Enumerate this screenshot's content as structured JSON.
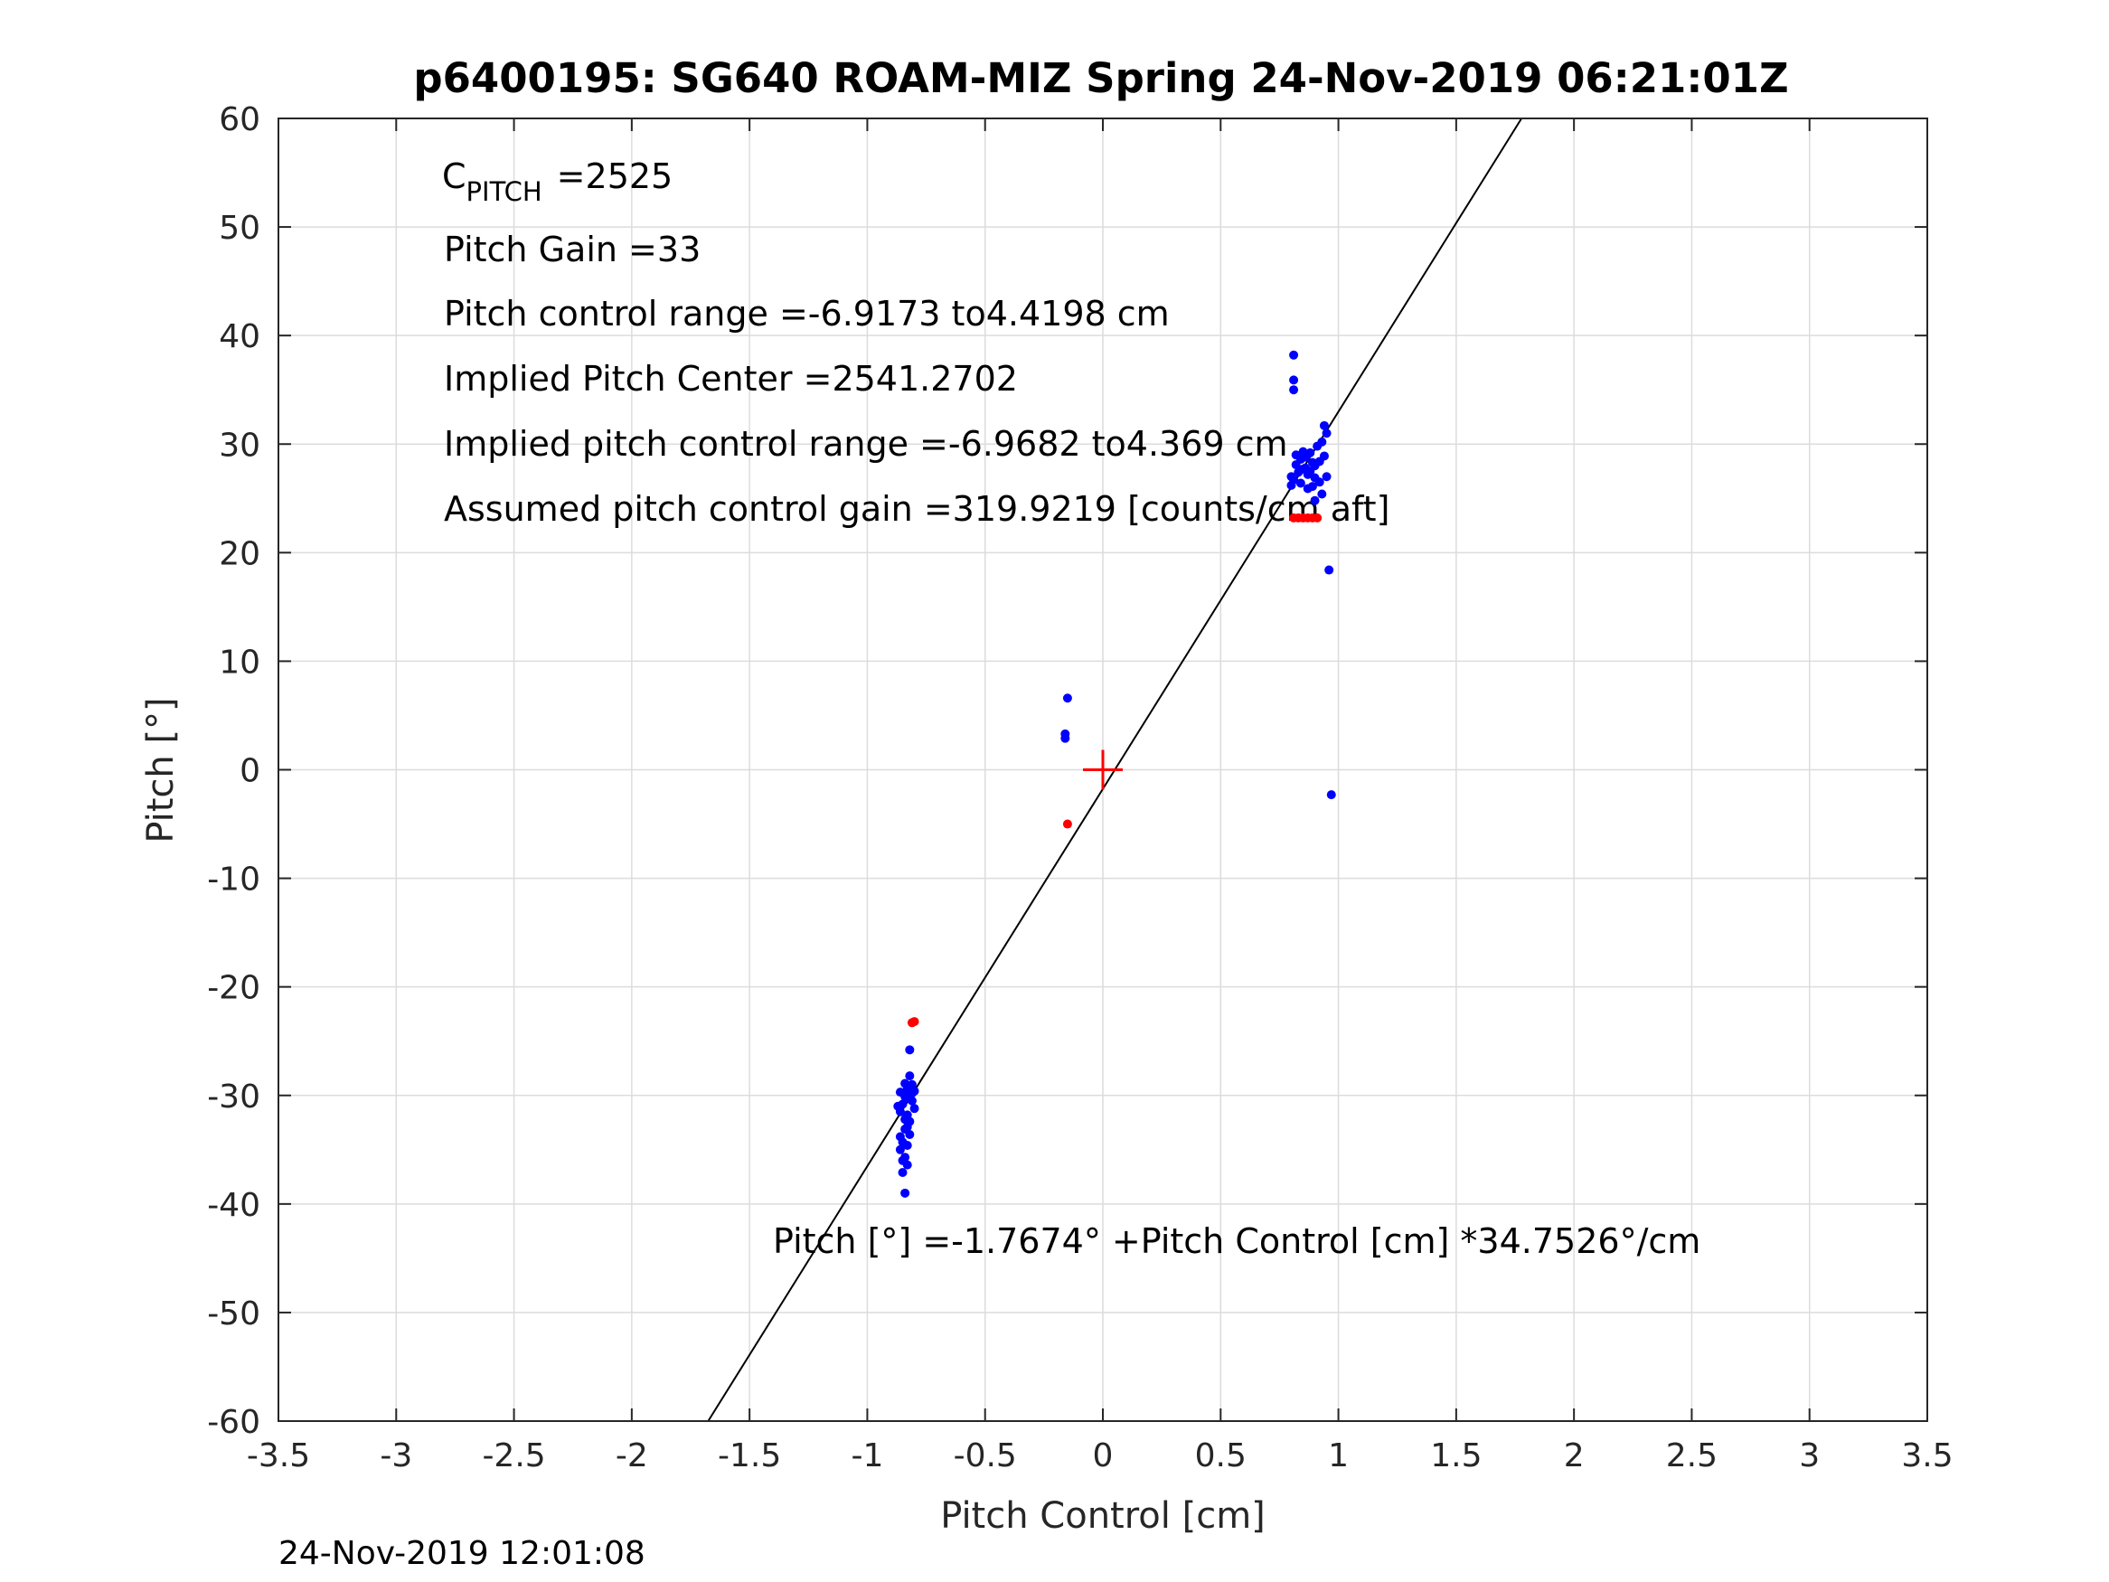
{
  "chart_data": {
    "type": "scatter",
    "title": "p6400195: SG640 ROAM-MIZ Spring 24-Nov-2019 06:21:01Z",
    "xlabel": "Pitch Control [cm]",
    "ylabel": "Pitch [°]",
    "xlim": [
      -3.5,
      3.5
    ],
    "ylim": [
      -60,
      60
    ],
    "xticks": [
      -3.5,
      -3,
      -2.5,
      -2,
      -1.5,
      -1,
      -0.5,
      0,
      0.5,
      1,
      1.5,
      2,
      2.5,
      3,
      3.5
    ],
    "xtick_labels": [
      "-3.5",
      "-3",
      "-2.5",
      "-2",
      "-1.5",
      "-1",
      "-0.5",
      "0",
      "0.5",
      "1",
      "1.5",
      "2",
      "2.5",
      "3",
      "3.5"
    ],
    "yticks": [
      -60,
      -50,
      -40,
      -30,
      -20,
      -10,
      0,
      10,
      20,
      30,
      40,
      50,
      60
    ],
    "ytick_labels": [
      "-60",
      "-50",
      "-40",
      "-30",
      "-20",
      "-10",
      "0",
      "10",
      "20",
      "30",
      "40",
      "50",
      "60"
    ],
    "grid": true,
    "series": [
      {
        "color": "#0000ff",
        "marker": "dot",
        "points": [
          [
            0.81,
            38.2
          ],
          [
            0.81,
            35.9
          ],
          [
            0.81,
            35.0
          ],
          [
            0.96,
            18.4
          ],
          [
            0.97,
            -2.3
          ],
          [
            0.8,
            27.0
          ],
          [
            0.82,
            28.1
          ],
          [
            0.84,
            26.4
          ],
          [
            0.86,
            27.8
          ],
          [
            0.88,
            29.2
          ],
          [
            0.9,
            26.9
          ],
          [
            0.92,
            28.4
          ],
          [
            0.94,
            31.7
          ],
          [
            0.95,
            31.0
          ],
          [
            0.93,
            30.2
          ],
          [
            0.85,
            29.3
          ],
          [
            0.83,
            27.4
          ],
          [
            0.87,
            25.9
          ],
          [
            0.89,
            26.1
          ],
          [
            0.91,
            29.8
          ],
          [
            0.81,
            26.7
          ],
          [
            0.86,
            28.8
          ],
          [
            0.88,
            27.5
          ],
          [
            0.9,
            28.0
          ],
          [
            0.92,
            26.5
          ],
          [
            0.95,
            27.0
          ],
          [
            0.84,
            28.6
          ],
          [
            0.82,
            29.0
          ],
          [
            0.87,
            27.2
          ],
          [
            0.93,
            25.4
          ],
          [
            0.8,
            26.2
          ],
          [
            0.9,
            24.8
          ],
          [
            0.85,
            27.7
          ],
          [
            0.89,
            28.3
          ],
          [
            0.94,
            28.9
          ],
          [
            -0.15,
            6.6
          ],
          [
            -0.16,
            3.3
          ],
          [
            -0.16,
            2.9
          ],
          [
            -0.82,
            -25.8
          ],
          [
            -0.82,
            -28.2
          ],
          [
            -0.83,
            -29.4
          ],
          [
            -0.84,
            -30.1
          ],
          [
            -0.85,
            -30.8
          ],
          [
            -0.86,
            -31.5
          ],
          [
            -0.84,
            -32.2
          ],
          [
            -0.83,
            -32.9
          ],
          [
            -0.82,
            -33.6
          ],
          [
            -0.85,
            -34.3
          ],
          [
            -0.86,
            -35.0
          ],
          [
            -0.84,
            -35.7
          ],
          [
            -0.83,
            -36.4
          ],
          [
            -0.85,
            -37.1
          ],
          [
            -0.84,
            -39.0
          ],
          [
            -0.81,
            -29.0
          ],
          [
            -0.8,
            -29.6
          ],
          [
            -0.81,
            -30.5
          ],
          [
            -0.8,
            -31.2
          ],
          [
            -0.86,
            -29.7
          ],
          [
            -0.87,
            -31.0
          ],
          [
            -0.83,
            -31.8
          ],
          [
            -0.82,
            -30.3
          ],
          [
            -0.84,
            -33.1
          ],
          [
            -0.83,
            -34.6
          ],
          [
            -0.85,
            -36.0
          ],
          [
            -0.82,
            -32.4
          ],
          [
            -0.86,
            -33.8
          ],
          [
            -0.81,
            -29.8
          ],
          [
            -0.84,
            -28.9
          ]
        ]
      },
      {
        "color": "#ff0000",
        "marker": "dot",
        "points": [
          [
            -0.8,
            -23.2
          ],
          [
            -0.81,
            -23.3
          ],
          [
            -0.15,
            -5.0
          ],
          [
            0.81,
            23.2
          ],
          [
            0.83,
            23.2
          ],
          [
            0.85,
            23.2
          ],
          [
            0.87,
            23.2
          ],
          [
            0.89,
            23.2
          ],
          [
            0.91,
            23.2
          ]
        ]
      },
      {
        "color": "#ff0000",
        "marker": "plus",
        "points": [
          [
            0,
            0
          ]
        ]
      }
    ],
    "fit_line": {
      "color": "#000000",
      "intercept": -1.7674,
      "slope": 34.7526
    },
    "annotations": {
      "c_pitch_main": "C",
      "c_pitch_sub": "PITCH",
      "c_pitch_value": "=2525",
      "pitch_gain": "Pitch Gain =33",
      "pitch_control_range": "Pitch control range =-6.9173 to4.4198 cm",
      "implied_pitch_center": "Implied Pitch Center =2541.2702",
      "implied_pitch_control_range": "Implied pitch control range =-6.9682 to4.369 cm",
      "assumed_gain": "Assumed pitch control gain =319.9219 [counts/cm aft]",
      "fit_equation": "Pitch [°] =-1.7674° +Pitch Control [cm] *34.7526°/cm"
    },
    "timestamp": "24-Nov-2019 12:01:08"
  }
}
